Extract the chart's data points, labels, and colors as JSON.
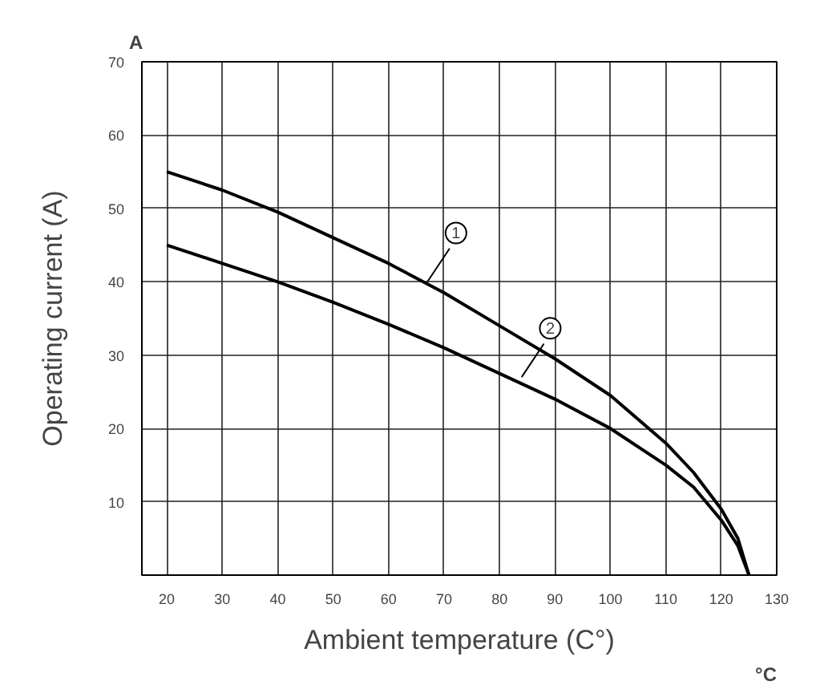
{
  "chart_data": {
    "type": "line",
    "xlabel": "Ambient temperature (C°)",
    "ylabel": "Operating current (A)",
    "xlim": [
      15.5,
      130
    ],
    "ylim": [
      0,
      70
    ],
    "xticks": [
      20,
      30,
      40,
      50,
      60,
      70,
      80,
      90,
      100,
      110,
      120,
      130
    ],
    "yticks": [
      10,
      20,
      30,
      40,
      50,
      60,
      70
    ],
    "grid": true,
    "marker": "none",
    "line_style": "solid",
    "series": [
      {
        "color": "#000000",
        "x": [
          20,
          30,
          40,
          50,
          60,
          70,
          80,
          90,
          100,
          110,
          115,
          120,
          123,
          125
        ],
        "values": [
          55,
          52.5,
          49.5,
          46,
          42.5,
          38.5,
          34,
          29.5,
          24.5,
          18,
          14,
          9,
          5,
          0
        ]
      },
      {
        "color": "#000000",
        "x": [
          20,
          30,
          40,
          50,
          60,
          70,
          80,
          90,
          100,
          110,
          115,
          120,
          123,
          125
        ],
        "values": [
          45,
          42.5,
          40,
          37.2,
          34.2,
          31,
          27.5,
          24,
          20,
          15,
          12,
          7.5,
          4,
          0
        ]
      }
    ],
    "annotations": [
      {
        "text": "1",
        "x": 67,
        "y": 40
      },
      {
        "text": "2",
        "x": 84,
        "y": 27
      },
      "A",
      "°C"
    ]
  }
}
